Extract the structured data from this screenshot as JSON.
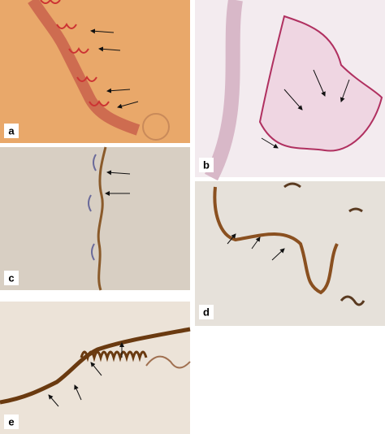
{
  "panels": [
    {
      "label": "a"
    },
    {
      "label": "b"
    },
    {
      "label": "c"
    },
    {
      "label": "d"
    },
    {
      "label": "e"
    }
  ]
}
